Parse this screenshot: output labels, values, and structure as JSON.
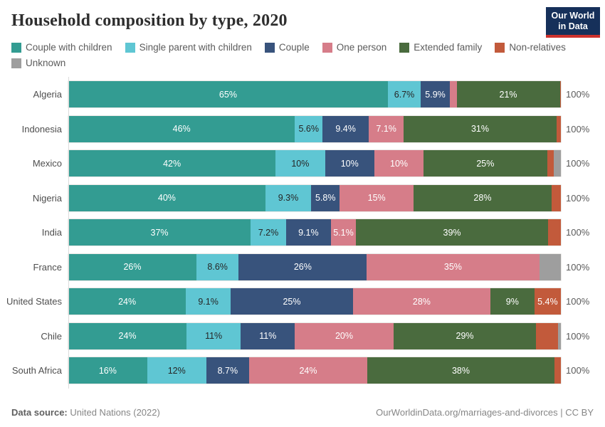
{
  "title": "Household composition by type, 2020",
  "logo": {
    "line1": "Our World",
    "line2": "in Data"
  },
  "legend": [
    {
      "label": "Couple with children",
      "color": "#339c92",
      "text_color": "#ffffff"
    },
    {
      "label": "Single parent with children",
      "color": "#5fc6d3",
      "text_color": "#262626"
    },
    {
      "label": "Couple",
      "color": "#38537c",
      "text_color": "#ffffff"
    },
    {
      "label": "One person",
      "color": "#d67d89",
      "text_color": "#ffffff"
    },
    {
      "label": "Extended family",
      "color": "#4a6b3e",
      "text_color": "#ffffff"
    },
    {
      "label": "Non-relatives",
      "color": "#c25a3b",
      "text_color": "#ffffff"
    },
    {
      "label": "Unknown",
      "color": "#9e9e9e",
      "text_color": "#ffffff"
    }
  ],
  "chart_data": {
    "type": "bar",
    "stacked": true,
    "orientation": "horizontal",
    "unit": "%",
    "x_range": [
      0,
      100
    ],
    "categories": [
      "Couple with children",
      "Single parent with children",
      "Couple",
      "One person",
      "Extended family",
      "Non-relatives",
      "Unknown"
    ],
    "rows": [
      {
        "country": "Algeria",
        "values": [
          65,
          6.7,
          5.9,
          1.4,
          21,
          0.2,
          0
        ],
        "labels": [
          "65%",
          "6.7%",
          "5.9%",
          "",
          "21%",
          "",
          ""
        ],
        "total_label": "100%"
      },
      {
        "country": "Indonesia",
        "values": [
          46,
          5.6,
          9.4,
          7.1,
          31,
          0.9,
          0
        ],
        "labels": [
          "46%",
          "5.6%",
          "9.4%",
          "7.1%",
          "31%",
          "",
          ""
        ],
        "total_label": "100%"
      },
      {
        "country": "Mexico",
        "values": [
          42,
          10,
          10,
          10,
          25,
          1.3,
          1.5
        ],
        "labels": [
          "42%",
          "10%",
          "10%",
          "10%",
          "25%",
          "",
          ""
        ],
        "total_label": "100%"
      },
      {
        "country": "Nigeria",
        "values": [
          40,
          9.3,
          5.8,
          15,
          28,
          1.9,
          0
        ],
        "labels": [
          "40%",
          "9.3%",
          "5.8%",
          "15%",
          "28%",
          "",
          ""
        ],
        "total_label": "100%"
      },
      {
        "country": "India",
        "values": [
          37,
          7.2,
          9.1,
          5.1,
          39,
          2.6,
          0
        ],
        "labels": [
          "37%",
          "7.2%",
          "9.1%",
          "5.1%",
          "39%",
          "",
          ""
        ],
        "total_label": "100%"
      },
      {
        "country": "France",
        "values": [
          26,
          8.6,
          26,
          35,
          0,
          0,
          4.4
        ],
        "labels": [
          "26%",
          "8.6%",
          "26%",
          "35%",
          "",
          "",
          ""
        ],
        "total_label": "100%"
      },
      {
        "country": "United States",
        "values": [
          24,
          9.1,
          25,
          28,
          9,
          5.4,
          0
        ],
        "labels": [
          "24%",
          "9.1%",
          "25%",
          "28%",
          "9%",
          "5.4%",
          ""
        ],
        "total_label": "100%"
      },
      {
        "country": "Chile",
        "values": [
          24,
          11,
          11,
          20,
          29,
          4.4,
          0.6
        ],
        "labels": [
          "24%",
          "11%",
          "11%",
          "20%",
          "29%",
          "",
          ""
        ],
        "total_label": "100%"
      },
      {
        "country": "South Africa",
        "values": [
          16,
          12,
          8.7,
          24,
          38,
          1.3,
          0
        ],
        "labels": [
          "16%",
          "12%",
          "8.7%",
          "24%",
          "38%",
          "",
          ""
        ],
        "total_label": "100%"
      }
    ]
  },
  "footer": {
    "source_label": "Data source:",
    "source_value": " United Nations (2022)",
    "credit": "OurWorldinData.org/marriages-and-divorces | CC BY"
  }
}
